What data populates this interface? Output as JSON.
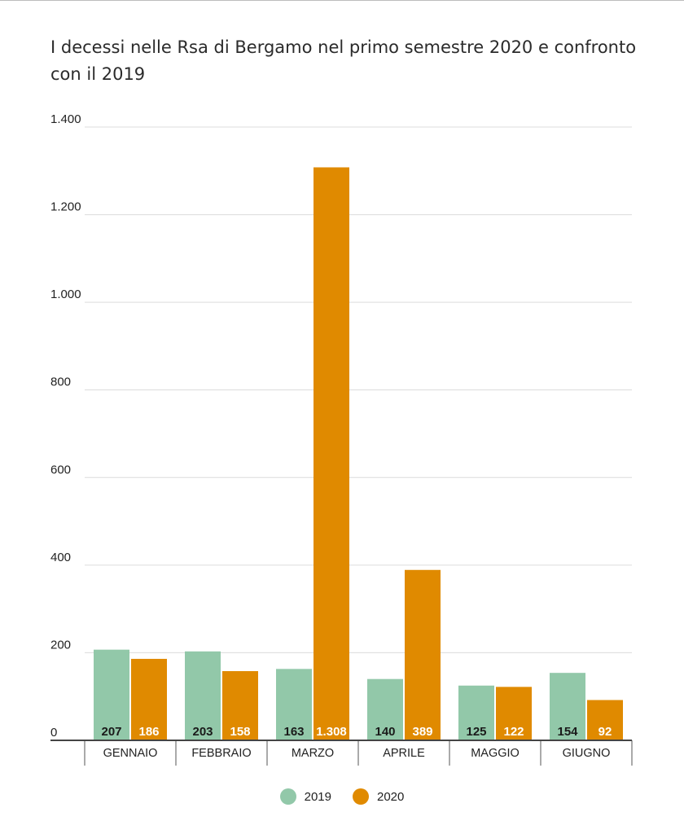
{
  "chart_data": {
    "type": "bar",
    "title": "I decessi nelle Rsa di Bergamo nel primo semestre 2020 e confronto con il 2019",
    "categories": [
      "GENNAIO",
      "FEBBRAIO",
      "MARZO",
      "APRILE",
      "MAGGIO",
      "GIUGNO"
    ],
    "series": [
      {
        "name": "2019",
        "color": "#92c8a9",
        "values": [
          207,
          203,
          163,
          140,
          125,
          154
        ],
        "labels": [
          "207",
          "203",
          "163",
          "140",
          "125",
          "154"
        ],
        "label_color": "#1a1a1a"
      },
      {
        "name": "2020",
        "color": "#e08a00",
        "values": [
          186,
          158,
          1308,
          389,
          122,
          92
        ],
        "labels": [
          "186",
          "158",
          "1.308",
          "389",
          "122",
          "92"
        ],
        "label_color": "#ffffff"
      }
    ],
    "y_ticks": [
      0,
      200,
      400,
      600,
      800,
      1000,
      1200,
      1400
    ],
    "y_tick_labels": [
      "0",
      "200",
      "400",
      "600",
      "800",
      "1.000",
      "1.200",
      "1.400"
    ],
    "ylim": [
      0,
      1400
    ],
    "grid": true,
    "legend_position": "bottom-center"
  }
}
